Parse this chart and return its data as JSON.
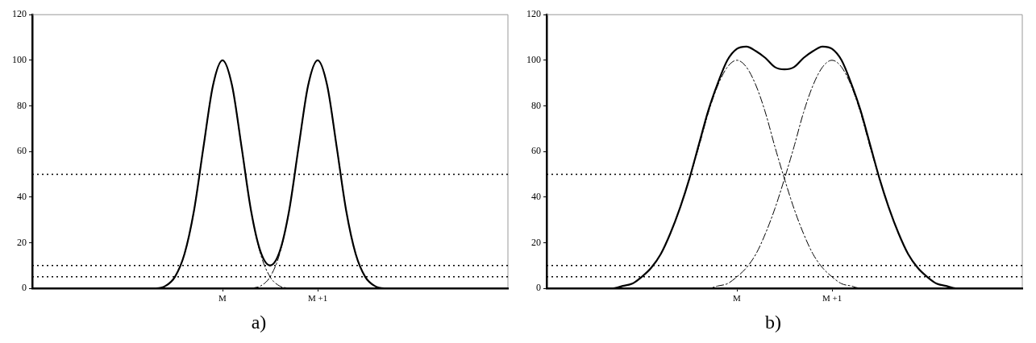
{
  "chart_data": [
    {
      "type": "line",
      "title": "a)",
      "categories": [
        null,
        null,
        null,
        null,
        null,
        null,
        null,
        null,
        null,
        null,
        null,
        null,
        null,
        null,
        null,
        null,
        null,
        null,
        null,
        null,
        "M",
        null,
        null,
        null,
        null,
        null,
        null,
        null,
        null,
        null,
        "M +1",
        null,
        null,
        null,
        null,
        null,
        null,
        null,
        null,
        null,
        null,
        null,
        null,
        null,
        null,
        null,
        null,
        null,
        null,
        null,
        null
      ],
      "series": [
        {
          "color": "#000000",
          "line_style": "solid",
          "values": [
            0,
            0,
            0,
            0,
            0,
            0,
            0,
            0,
            0,
            0,
            0,
            0,
            0,
            0,
            1,
            5,
            15,
            34,
            62,
            89,
            100,
            89,
            62,
            34,
            16,
            10,
            16,
            34,
            62,
            89,
            100,
            89,
            62,
            34,
            15,
            5,
            1,
            0,
            0,
            0,
            0,
            0,
            0,
            0,
            0,
            0,
            0,
            0,
            0,
            0,
            0
          ]
        },
        {
          "color": "#000000",
          "line_style": "dashed",
          "values": [
            0,
            0,
            0,
            0,
            0,
            0,
            0,
            0,
            0,
            0,
            0,
            0,
            0,
            0,
            1,
            5,
            15,
            34,
            62,
            89,
            100,
            89,
            62,
            34,
            15,
            5,
            1,
            0,
            null,
            null,
            null,
            null,
            null,
            null,
            null,
            null,
            null,
            null,
            null,
            null,
            null,
            null,
            null,
            null,
            null,
            null,
            null,
            null,
            null,
            null,
            null
          ]
        },
        {
          "color": "#000000",
          "line_style": "dashed",
          "values": [
            null,
            null,
            null,
            null,
            null,
            null,
            null,
            null,
            null,
            null,
            null,
            null,
            null,
            null,
            null,
            null,
            null,
            null,
            null,
            null,
            null,
            null,
            null,
            0,
            1,
            5,
            15,
            34,
            62,
            89,
            100,
            89,
            62,
            34,
            15,
            5,
            1,
            0,
            0,
            0,
            0,
            0,
            0,
            0,
            0,
            0,
            0,
            0,
            0,
            0,
            0
          ]
        }
      ],
      "ylim": [
        0,
        120
      ],
      "yticks": [
        0,
        20,
        40,
        60,
        80,
        100,
        120
      ],
      "marker": "none",
      "ref_lines": [
        {
          "axis": "y",
          "value": 50,
          "line_style": "dotted",
          "color": "#000000"
        },
        {
          "axis": "y",
          "value": 10,
          "line_style": "dotted",
          "color": "#000000"
        },
        {
          "axis": "y",
          "value": 5,
          "line_style": "dotted",
          "color": "#000000"
        }
      ]
    },
    {
      "type": "line",
      "title": "b)",
      "categories": [
        null,
        null,
        null,
        null,
        null,
        null,
        null,
        null,
        null,
        null,
        null,
        null,
        null,
        null,
        null,
        null,
        null,
        null,
        null,
        null,
        "M",
        null,
        null,
        null,
        null,
        null,
        null,
        null,
        null,
        null,
        "M +1",
        null,
        null,
        null,
        null,
        null,
        null,
        null,
        null,
        null,
        null,
        null,
        null,
        null,
        null,
        null,
        null,
        null,
        null,
        null,
        null
      ],
      "series": [
        {
          "color": "#000000",
          "line_style": "solid",
          "values": [
            0,
            0,
            0,
            0,
            0,
            0,
            0,
            0,
            1,
            2,
            5,
            9,
            15,
            24,
            35,
            48,
            63,
            78,
            90,
            100,
            105,
            106,
            104,
            101,
            97,
            96,
            97,
            101,
            104,
            106,
            105,
            100,
            90,
            78,
            63,
            48,
            35,
            24,
            15,
            9,
            5,
            2,
            1,
            0,
            0,
            0,
            0,
            0,
            0,
            0,
            0
          ]
        },
        {
          "color": "#000000",
          "line_style": "dashed",
          "values": [
            0,
            0,
            0,
            0,
            0,
            0,
            0,
            0,
            1,
            2,
            5,
            9,
            15,
            24,
            35,
            48,
            62,
            77,
            89,
            97,
            100,
            97,
            89,
            77,
            62,
            48,
            35,
            24,
            15,
            9,
            5,
            2,
            1,
            0,
            0,
            null,
            null,
            null,
            null,
            null,
            null,
            null,
            null,
            null,
            null,
            null,
            null,
            null,
            null,
            null,
            null
          ]
        },
        {
          "color": "#000000",
          "line_style": "dashed",
          "values": [
            null,
            null,
            null,
            null,
            null,
            null,
            null,
            null,
            null,
            null,
            null,
            null,
            null,
            null,
            null,
            0,
            0,
            0,
            1,
            2,
            5,
            9,
            15,
            24,
            35,
            48,
            62,
            77,
            89,
            97,
            100,
            97,
            89,
            77,
            62,
            48,
            35,
            24,
            15,
            9,
            5,
            2,
            1,
            0,
            0,
            0,
            0,
            0,
            0,
            0,
            0
          ]
        }
      ],
      "ylim": [
        0,
        120
      ],
      "yticks": [
        0,
        20,
        40,
        60,
        80,
        100,
        120
      ],
      "marker": "none",
      "ref_lines": [
        {
          "axis": "y",
          "value": 50,
          "line_style": "dotted",
          "color": "#000000"
        },
        {
          "axis": "y",
          "value": 10,
          "line_style": "dotted",
          "color": "#000000"
        },
        {
          "axis": "y",
          "value": 5,
          "line_style": "dotted",
          "color": "#000000"
        }
      ]
    }
  ]
}
